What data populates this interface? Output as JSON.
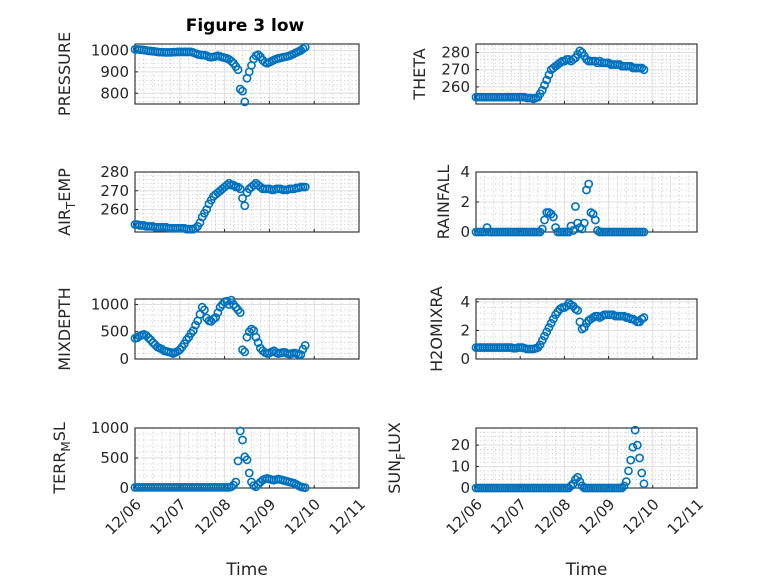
{
  "figure_title": "Figure 3 low",
  "colors": {
    "marker": "#0072BD",
    "axis": "#262626"
  },
  "chart_data": [
    {
      "type": "scatter",
      "title": "Figure 3 low",
      "ylabel": "PRESSURE",
      "xlabel": "",
      "xlim": [
        0,
        5
      ],
      "ylim": [
        750,
        1030
      ],
      "yticks": [
        800,
        900,
        1000
      ],
      "xticks": [],
      "x": [
        0,
        0.05,
        0.1,
        0.15,
        0.2,
        0.25,
        0.3,
        0.35,
        0.4,
        0.45,
        0.5,
        0.55,
        0.6,
        0.65,
        0.7,
        0.75,
        0.8,
        0.85,
        0.9,
        0.95,
        1.0,
        1.05,
        1.1,
        1.15,
        1.2,
        1.25,
        1.3,
        1.35,
        1.4,
        1.45,
        1.5,
        1.55,
        1.6,
        1.65,
        1.7,
        1.75,
        1.8,
        1.85,
        1.9,
        1.95,
        2.0,
        2.05,
        2.1,
        2.15,
        2.2,
        2.25,
        2.3,
        2.35,
        2.4,
        2.45,
        2.5,
        2.55,
        2.6,
        2.65,
        2.7,
        2.75,
        2.8,
        2.85,
        2.9,
        2.95,
        3.0,
        3.05,
        3.1,
        3.15,
        3.2,
        3.25,
        3.3,
        3.35,
        3.4,
        3.45,
        3.5,
        3.55,
        3.6,
        3.65,
        3.7,
        3.75,
        3.8
      ],
      "y": [
        1005,
        1005,
        1004,
        1003,
        1002,
        1000,
        998,
        997,
        996,
        995,
        993,
        992,
        992,
        991,
        991,
        991,
        991,
        992,
        992,
        993,
        993,
        993,
        993,
        993,
        993,
        993,
        990,
        986,
        982,
        980,
        978,
        978,
        975,
        970,
        968,
        970,
        972,
        975,
        972,
        968,
        966,
        963,
        958,
        950,
        940,
        925,
        910,
        820,
        810,
        760,
        870,
        900,
        930,
        960,
        975,
        980,
        970,
        955,
        945,
        940,
        945,
        950,
        955,
        960,
        963,
        965,
        968,
        970,
        972,
        975,
        980,
        985,
        990,
        995,
        1000,
        1008,
        1015
      ]
    },
    {
      "type": "scatter",
      "ylabel": "THETA",
      "xlabel": "",
      "xlim": [
        0,
        5
      ],
      "ylim": [
        250,
        285
      ],
      "yticks": [
        260,
        270,
        280
      ],
      "xticks": [],
      "x": [
        0,
        0.05,
        0.1,
        0.15,
        0.2,
        0.25,
        0.3,
        0.35,
        0.4,
        0.45,
        0.5,
        0.55,
        0.6,
        0.65,
        0.7,
        0.75,
        0.8,
        0.85,
        0.9,
        0.95,
        1.0,
        1.05,
        1.1,
        1.15,
        1.2,
        1.25,
        1.3,
        1.35,
        1.4,
        1.45,
        1.5,
        1.55,
        1.6,
        1.65,
        1.7,
        1.75,
        1.8,
        1.85,
        1.9,
        1.95,
        2.0,
        2.05,
        2.1,
        2.15,
        2.2,
        2.25,
        2.3,
        2.35,
        2.4,
        2.45,
        2.5,
        2.55,
        2.6,
        2.65,
        2.7,
        2.75,
        2.8,
        2.85,
        2.9,
        2.95,
        3.0,
        3.05,
        3.1,
        3.15,
        3.2,
        3.25,
        3.3,
        3.35,
        3.4,
        3.45,
        3.5,
        3.55,
        3.6,
        3.65,
        3.7,
        3.75,
        3.8
      ],
      "y": [
        254,
        254,
        254,
        254,
        254,
        254,
        254,
        254,
        254,
        254,
        254,
        254,
        254,
        254,
        254,
        254,
        254,
        254,
        254,
        254,
        254,
        254,
        254,
        253.5,
        253.5,
        253.5,
        253,
        253.5,
        254,
        256,
        258,
        261,
        264,
        267,
        270,
        271,
        272,
        273,
        274,
        275,
        275,
        276,
        276,
        275,
        276,
        277,
        279,
        281,
        280,
        278,
        276,
        275,
        275,
        275,
        275,
        274,
        275,
        274,
        274,
        274,
        274,
        273,
        273,
        273,
        273,
        273,
        272,
        272,
        272,
        272,
        272,
        271,
        271,
        271,
        271,
        271,
        270
      ]
    },
    {
      "type": "scatter",
      "ylabel": "AIR_TEMP",
      "xlabel": "",
      "xlim": [
        0,
        5
      ],
      "ylim": [
        248,
        280
      ],
      "yticks": [
        260,
        270,
        280
      ],
      "xticks": [],
      "x": [
        0,
        0.05,
        0.1,
        0.15,
        0.2,
        0.25,
        0.3,
        0.35,
        0.4,
        0.45,
        0.5,
        0.55,
        0.6,
        0.65,
        0.7,
        0.75,
        0.8,
        0.85,
        0.9,
        0.95,
        1.0,
        1.05,
        1.1,
        1.15,
        1.2,
        1.25,
        1.3,
        1.35,
        1.4,
        1.45,
        1.5,
        1.55,
        1.6,
        1.65,
        1.7,
        1.75,
        1.8,
        1.85,
        1.9,
        1.95,
        2.0,
        2.05,
        2.1,
        2.15,
        2.2,
        2.25,
        2.3,
        2.35,
        2.4,
        2.45,
        2.5,
        2.55,
        2.6,
        2.65,
        2.7,
        2.75,
        2.8,
        2.85,
        2.9,
        2.95,
        3.0,
        3.05,
        3.1,
        3.15,
        3.2,
        3.25,
        3.3,
        3.35,
        3.4,
        3.45,
        3.5,
        3.55,
        3.6,
        3.65,
        3.7,
        3.75,
        3.8
      ],
      "y": [
        252,
        252,
        251.5,
        251.5,
        251.5,
        251,
        251,
        251,
        251,
        250.5,
        250.5,
        250.5,
        250.5,
        250.5,
        250.5,
        250,
        250,
        250,
        250,
        250,
        250,
        250,
        250,
        249.5,
        249.5,
        249.5,
        249.5,
        250,
        251,
        253,
        256,
        258,
        260,
        263,
        265,
        267,
        268,
        269,
        270,
        271,
        272,
        273,
        274,
        273,
        273,
        272,
        272,
        271,
        266,
        262,
        269,
        271,
        272,
        273,
        274,
        273,
        272,
        271,
        271,
        271,
        271,
        270.5,
        270.5,
        271,
        271,
        271,
        270.5,
        270.5,
        270.5,
        271,
        271,
        271,
        271.5,
        271.5,
        272,
        272,
        272
      ]
    },
    {
      "type": "scatter",
      "ylabel": "RAINFALL",
      "xlabel": "",
      "xlim": [
        0,
        5
      ],
      "ylim": [
        0,
        4
      ],
      "yticks": [
        0,
        2,
        4
      ],
      "xticks": [],
      "x": [
        0,
        0.05,
        0.1,
        0.15,
        0.2,
        0.25,
        0.3,
        0.35,
        0.4,
        0.45,
        0.5,
        0.55,
        0.6,
        0.65,
        0.7,
        0.75,
        0.8,
        0.85,
        0.9,
        0.95,
        1.0,
        1.05,
        1.1,
        1.15,
        1.2,
        1.25,
        1.3,
        1.35,
        1.4,
        1.45,
        1.5,
        1.55,
        1.6,
        1.65,
        1.7,
        1.75,
        1.8,
        1.85,
        1.9,
        1.95,
        2.0,
        2.05,
        2.1,
        2.15,
        2.2,
        2.25,
        2.3,
        2.35,
        2.4,
        2.45,
        2.5,
        2.55,
        2.6,
        2.65,
        2.7,
        2.75,
        2.8,
        2.85,
        2.9,
        2.95,
        3.0,
        3.05,
        3.1,
        3.15,
        3.2,
        3.25,
        3.3,
        3.35,
        3.4,
        3.45,
        3.5,
        3.55,
        3.6,
        3.65,
        3.7,
        3.75,
        3.8
      ],
      "y": [
        0,
        0,
        0,
        0,
        0,
        0.3,
        0,
        0,
        0,
        0,
        0,
        0,
        0,
        0,
        0,
        0,
        0,
        0,
        0,
        0,
        0,
        0,
        0,
        0,
        0,
        0,
        0,
        0,
        0,
        0,
        0.2,
        0.8,
        1.3,
        1.3,
        1.2,
        1.0,
        0.3,
        0,
        0,
        0,
        0,
        0,
        0,
        0.4,
        0.1,
        1.7,
        0.6,
        0.3,
        0.2,
        0.6,
        2.8,
        3.2,
        1.3,
        1.2,
        0.8,
        0.1,
        0,
        0,
        0,
        0,
        0,
        0,
        0,
        0,
        0,
        0,
        0,
        0,
        0,
        0,
        0,
        0,
        0,
        0,
        0,
        0,
        0
      ]
    },
    {
      "type": "scatter",
      "ylabel": "MIXDEPTH",
      "xlabel": "",
      "xlim": [
        0,
        5
      ],
      "ylim": [
        0,
        1100
      ],
      "yticks": [
        0,
        500,
        1000
      ],
      "xticks": [],
      "x": [
        0,
        0.05,
        0.1,
        0.15,
        0.2,
        0.25,
        0.3,
        0.35,
        0.4,
        0.45,
        0.5,
        0.55,
        0.6,
        0.65,
        0.7,
        0.75,
        0.8,
        0.85,
        0.9,
        0.95,
        1.0,
        1.05,
        1.1,
        1.15,
        1.2,
        1.25,
        1.3,
        1.35,
        1.4,
        1.45,
        1.5,
        1.55,
        1.6,
        1.65,
        1.7,
        1.75,
        1.8,
        1.85,
        1.9,
        1.95,
        2.0,
        2.05,
        2.1,
        2.15,
        2.2,
        2.25,
        2.3,
        2.35,
        2.4,
        2.45,
        2.5,
        2.55,
        2.6,
        2.65,
        2.7,
        2.75,
        2.8,
        2.85,
        2.9,
        2.95,
        3.0,
        3.05,
        3.1,
        3.15,
        3.2,
        3.25,
        3.3,
        3.35,
        3.4,
        3.45,
        3.5,
        3.55,
        3.6,
        3.65,
        3.7,
        3.75,
        3.8
      ],
      "y": [
        380,
        390,
        420,
        440,
        450,
        430,
        390,
        350,
        300,
        260,
        220,
        200,
        180,
        150,
        140,
        130,
        120,
        100,
        120,
        140,
        170,
        220,
        280,
        350,
        400,
        470,
        520,
        620,
        700,
        820,
        950,
        900,
        750,
        700,
        690,
        730,
        760,
        850,
        950,
        1000,
        1050,
        1060,
        1000,
        1080,
        1000,
        950,
        900,
        850,
        170,
        130,
        400,
        500,
        550,
        520,
        400,
        300,
        200,
        150,
        120,
        100,
        110,
        130,
        150,
        120,
        100,
        110,
        120,
        120,
        100,
        90,
        100,
        110,
        100,
        80,
        80,
        180,
        250
      ]
    },
    {
      "type": "scatter",
      "ylabel": "H2OMIXRA",
      "xlabel": "",
      "xlim": [
        0,
        5
      ],
      "ylim": [
        0,
        4.2
      ],
      "yticks": [
        0,
        2,
        4
      ],
      "xticks": [],
      "x": [
        0,
        0.05,
        0.1,
        0.15,
        0.2,
        0.25,
        0.3,
        0.35,
        0.4,
        0.45,
        0.5,
        0.55,
        0.6,
        0.65,
        0.7,
        0.75,
        0.8,
        0.85,
        0.9,
        0.95,
        1.0,
        1.05,
        1.1,
        1.15,
        1.2,
        1.25,
        1.3,
        1.35,
        1.4,
        1.45,
        1.5,
        1.55,
        1.6,
        1.65,
        1.7,
        1.75,
        1.8,
        1.85,
        1.9,
        1.95,
        2.0,
        2.05,
        2.1,
        2.15,
        2.2,
        2.25,
        2.3,
        2.35,
        2.4,
        2.45,
        2.5,
        2.55,
        2.6,
        2.65,
        2.7,
        2.75,
        2.8,
        2.85,
        2.9,
        2.95,
        3.0,
        3.05,
        3.1,
        3.15,
        3.2,
        3.25,
        3.3,
        3.35,
        3.4,
        3.45,
        3.5,
        3.55,
        3.6,
        3.65,
        3.7,
        3.75,
        3.8
      ],
      "y": [
        0.8,
        0.8,
        0.8,
        0.8,
        0.8,
        0.8,
        0.8,
        0.8,
        0.8,
        0.8,
        0.8,
        0.8,
        0.8,
        0.8,
        0.8,
        0.8,
        0.8,
        0.75,
        0.75,
        0.8,
        0.8,
        0.8,
        0.75,
        0.7,
        0.7,
        0.7,
        0.7,
        0.75,
        0.8,
        1.0,
        1.3,
        1.6,
        1.9,
        2.2,
        2.5,
        2.8,
        3.1,
        3.3,
        3.5,
        3.6,
        3.6,
        3.7,
        3.9,
        3.8,
        3.7,
        3.5,
        3.4,
        2.6,
        2.1,
        2.2,
        2.5,
        2.7,
        2.8,
        2.9,
        3.0,
        3.0,
        2.9,
        3.0,
        3.1,
        3.1,
        3.1,
        3.1,
        3.1,
        3.0,
        3.0,
        3.0,
        3.0,
        3.0,
        2.9,
        2.9,
        2.8,
        2.8,
        2.7,
        2.6,
        2.6,
        2.8,
        2.9
      ]
    },
    {
      "type": "scatter",
      "ylabel": "TERR_MSL",
      "xlabel": "Time",
      "xlim": [
        0,
        5
      ],
      "ylim": [
        0,
        1000
      ],
      "yticks": [
        0,
        500,
        1000
      ],
      "xticks": [
        "12/06",
        "12/07",
        "12/08",
        "12/09",
        "12/10",
        "12/11"
      ],
      "x": [
        0,
        0.05,
        0.1,
        0.15,
        0.2,
        0.25,
        0.3,
        0.35,
        0.4,
        0.45,
        0.5,
        0.55,
        0.6,
        0.65,
        0.7,
        0.75,
        0.8,
        0.85,
        0.9,
        0.95,
        1.0,
        1.05,
        1.1,
        1.15,
        1.2,
        1.25,
        1.3,
        1.35,
        1.4,
        1.45,
        1.5,
        1.55,
        1.6,
        1.65,
        1.7,
        1.75,
        1.8,
        1.85,
        1.9,
        1.95,
        2.0,
        2.05,
        2.1,
        2.15,
        2.2,
        2.25,
        2.3,
        2.35,
        2.4,
        2.45,
        2.5,
        2.55,
        2.6,
        2.65,
        2.7,
        2.75,
        2.8,
        2.85,
        2.9,
        2.95,
        3.0,
        3.05,
        3.1,
        3.15,
        3.2,
        3.25,
        3.3,
        3.35,
        3.4,
        3.45,
        3.5,
        3.55,
        3.6,
        3.65,
        3.7,
        3.75,
        3.8
      ],
      "y": [
        10,
        10,
        10,
        10,
        10,
        10,
        10,
        10,
        10,
        10,
        10,
        10,
        10,
        10,
        10,
        10,
        10,
        10,
        10,
        10,
        10,
        10,
        10,
        10,
        10,
        10,
        10,
        10,
        10,
        10,
        10,
        10,
        10,
        10,
        10,
        10,
        10,
        10,
        10,
        10,
        10,
        10,
        10,
        20,
        50,
        100,
        450,
        950,
        800,
        520,
        470,
        250,
        100,
        40,
        20,
        60,
        100,
        130,
        150,
        160,
        150,
        140,
        130,
        140,
        150,
        140,
        130,
        120,
        110,
        100,
        90,
        80,
        60,
        40,
        20,
        10,
        5
      ]
    },
    {
      "type": "scatter",
      "ylabel": "SUN_FLUX",
      "xlabel": "Time",
      "xlim": [
        0,
        5
      ],
      "ylim": [
        0,
        28
      ],
      "yticks": [
        0,
        10,
        20
      ],
      "xticks": [
        "12/06",
        "12/07",
        "12/08",
        "12/09",
        "12/10",
        "12/11"
      ],
      "x": [
        0,
        0.05,
        0.1,
        0.15,
        0.2,
        0.25,
        0.3,
        0.35,
        0.4,
        0.45,
        0.5,
        0.55,
        0.6,
        0.65,
        0.7,
        0.75,
        0.8,
        0.85,
        0.9,
        0.95,
        1.0,
        1.05,
        1.1,
        1.15,
        1.2,
        1.25,
        1.3,
        1.35,
        1.4,
        1.45,
        1.5,
        1.55,
        1.6,
        1.65,
        1.7,
        1.75,
        1.8,
        1.85,
        1.9,
        1.95,
        2.0,
        2.05,
        2.1,
        2.15,
        2.2,
        2.25,
        2.3,
        2.35,
        2.4,
        2.45,
        2.5,
        2.55,
        2.6,
        2.65,
        2.7,
        2.75,
        2.8,
        2.85,
        2.9,
        2.95,
        3.0,
        3.05,
        3.1,
        3.15,
        3.2,
        3.25,
        3.3,
        3.35,
        3.4,
        3.45,
        3.5,
        3.55,
        3.6,
        3.65,
        3.7,
        3.75,
        3.8
      ],
      "y": [
        0,
        0,
        0,
        0,
        0,
        0,
        0,
        0,
        0,
        0,
        0,
        0,
        0,
        0,
        0,
        0,
        0,
        0,
        0,
        0,
        0,
        0,
        0,
        0,
        0,
        0,
        0,
        0,
        0,
        0,
        0,
        0,
        0,
        0,
        0,
        0,
        0,
        0,
        0,
        0,
        0,
        0,
        0,
        1,
        2,
        4,
        5,
        3,
        1,
        0,
        0,
        0,
        0,
        0,
        0,
        0,
        0,
        0,
        0,
        0,
        0,
        0,
        0,
        0,
        0,
        0,
        0,
        1,
        3,
        8,
        13,
        19,
        27,
        20,
        14,
        7,
        2
      ]
    }
  ]
}
